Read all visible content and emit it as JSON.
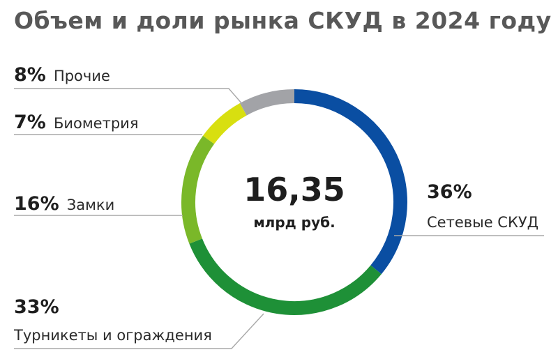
{
  "title": "Объем и доли рынка СКУД в 2024 году",
  "chart_data": {
    "type": "pie",
    "style": "donut",
    "center_value": "16,35",
    "center_unit": "млрд руб.",
    "slices": [
      {
        "label": "Сетевые СКУД",
        "value": 36,
        "value_label": "36%",
        "color": "#0a4ea2"
      },
      {
        "label": "Турникеты и ограждения",
        "value": 33,
        "value_label": "33%",
        "color": "#1e9037"
      },
      {
        "label": "Замки",
        "value": 16,
        "value_label": "16%",
        "color": "#7ab829"
      },
      {
        "label": "Биометрия",
        "value": 7,
        "value_label": "7%",
        "color": "#d8df10"
      },
      {
        "label": "Прочие",
        "value": 8,
        "value_label": "8%",
        "color": "#a2a3a7"
      }
    ]
  }
}
